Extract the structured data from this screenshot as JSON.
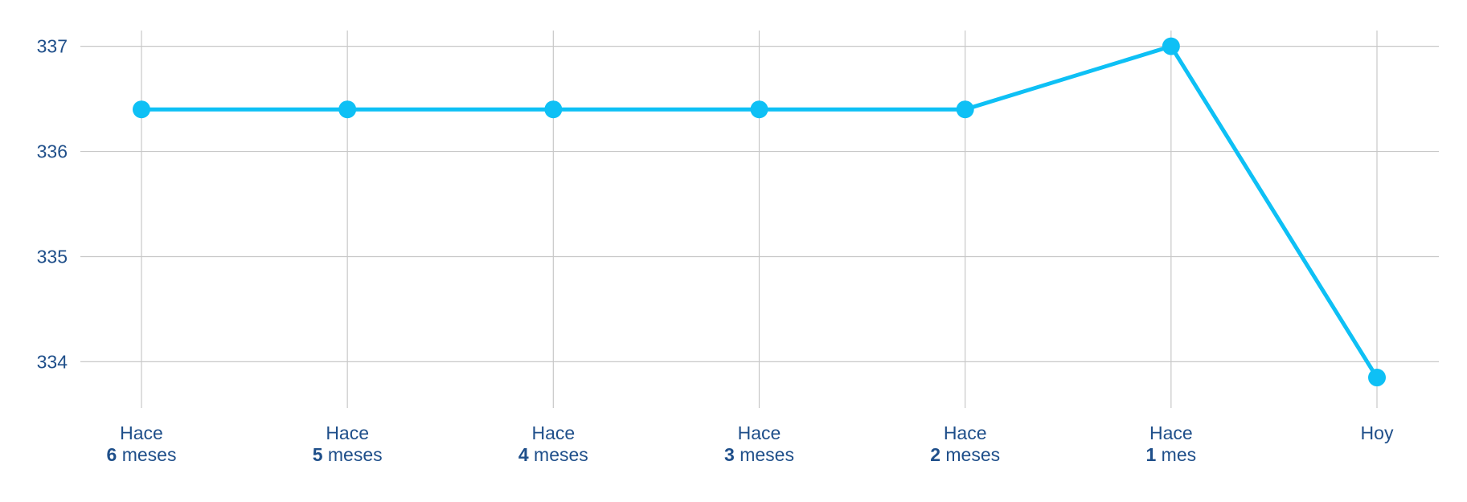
{
  "chart_data": {
    "type": "line",
    "title": "",
    "xlabel": "",
    "ylabel": "",
    "categories": [
      {
        "line1": "Hace",
        "num": "6",
        "unit": " meses"
      },
      {
        "line1": "Hace",
        "num": "5",
        "unit": " meses"
      },
      {
        "line1": "Hace",
        "num": "4",
        "unit": " meses"
      },
      {
        "line1": "Hace",
        "num": "3",
        "unit": " meses"
      },
      {
        "line1": "Hace",
        "num": "2",
        "unit": " meses"
      },
      {
        "line1": "Hace",
        "num": "1",
        "unit": " mes"
      },
      {
        "line1": "Hoy",
        "num": "",
        "unit": ""
      }
    ],
    "series": [
      {
        "values": [
          336.4,
          336.4,
          336.4,
          336.4,
          336.4,
          337.0,
          333.85
        ]
      }
    ],
    "yticks": [
      334,
      335,
      336,
      337
    ],
    "ylim": [
      333.56,
      337.15
    ],
    "grid": true,
    "legend": "none"
  },
  "colors": {
    "line": "#0ec0f5",
    "text": "#1f4f8a",
    "grid": "#c8c8c8"
  }
}
